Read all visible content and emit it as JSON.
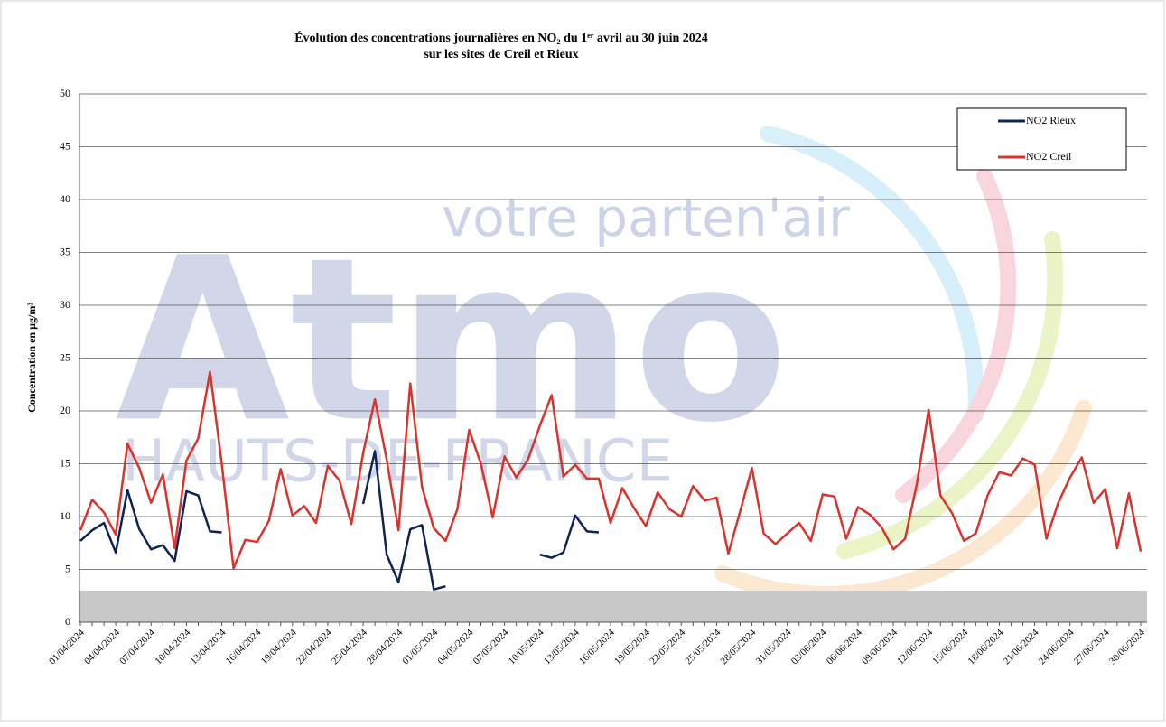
{
  "chart_data": {
    "type": "line",
    "title": [
      "Évolution des concentrations journalières en NO₂ du 1ᵉʳ avril au 30 juin 2024",
      "sur les sites de Creil et Rieux"
    ],
    "ylabel": "Concentration en µg/m³",
    "watermark": [
      "votre parten'air",
      "Atmo",
      "HAUTS-DE-FRANCE"
    ],
    "ylim": [
      0,
      50
    ],
    "yticks": [
      0,
      5,
      10,
      15,
      20,
      25,
      30,
      35,
      40,
      45,
      50
    ],
    "grid": true,
    "legend": "upper right",
    "categories": [
      "01/04/2024",
      null,
      null,
      "04/04/2024",
      null,
      null,
      "07/04/2024",
      null,
      null,
      "10/04/2024",
      null,
      null,
      "13/04/2024",
      null,
      null,
      "16/04/2024",
      null,
      null,
      "19/04/2024",
      null,
      null,
      "22/04/2024",
      null,
      null,
      "25/04/2024",
      null,
      null,
      "28/04/2024",
      null,
      null,
      "01/05/2024",
      null,
      null,
      "04/05/2024",
      null,
      null,
      "07/05/2024",
      null,
      null,
      "10/05/2024",
      null,
      null,
      "13/05/2024",
      null,
      null,
      "16/05/2024",
      null,
      null,
      "19/05/2024",
      null,
      null,
      "22/05/2024",
      null,
      null,
      "25/05/2024",
      null,
      null,
      "28/05/2024",
      null,
      null,
      "31/05/2024",
      null,
      null,
      "03/06/2024",
      null,
      null,
      "06/06/2024",
      null,
      null,
      "09/06/2024",
      null,
      null,
      "12/06/2024",
      null,
      null,
      "15/06/2024",
      null,
      null,
      "18/06/2024",
      null,
      null,
      "21/06/2024",
      null,
      null,
      "24/06/2024",
      null,
      null,
      "27/06/2024",
      null,
      null,
      "30/06/2024"
    ],
    "series": [
      {
        "name": "NO2 Rieux",
        "color": "#0f2456",
        "values": [
          7.7,
          8.7,
          9.4,
          6.6,
          12.5,
          8.8,
          6.9,
          7.3,
          5.8,
          12.4,
          12.0,
          8.6,
          8.5,
          null,
          null,
          null,
          null,
          null,
          null,
          null,
          null,
          null,
          null,
          null,
          11.2,
          16.2,
          6.4,
          3.8,
          8.8,
          9.2,
          3.1,
          3.4,
          null,
          null,
          null,
          null,
          null,
          null,
          null,
          6.4,
          6.1,
          6.6,
          10.1,
          8.6,
          8.5,
          null,
          null,
          null,
          null,
          null,
          null,
          null,
          null,
          null,
          null,
          null,
          null,
          null,
          null,
          null,
          null,
          null,
          null,
          null,
          null,
          null,
          null,
          null,
          null,
          null,
          null,
          null,
          null,
          null,
          null,
          null,
          null,
          null,
          null,
          null,
          null,
          null,
          null,
          null,
          null,
          null,
          null,
          null,
          null,
          null,
          null
        ]
      },
      {
        "name": "NO2  Creil",
        "color": "#d9342b",
        "values": [
          8.7,
          11.6,
          10.4,
          8.3,
          16.9,
          14.6,
          11.3,
          14.0,
          7.0,
          15.3,
          17.4,
          23.7,
          15.0,
          5.1,
          7.8,
          7.6,
          9.6,
          14.5,
          10.1,
          11.0,
          9.4,
          14.8,
          13.4,
          9.3,
          16.0,
          21.1,
          15.4,
          8.7,
          22.6,
          12.8,
          8.9,
          7.7,
          10.7,
          18.2,
          15.0,
          9.9,
          15.7,
          13.7,
          15.4,
          18.6,
          21.5,
          13.8,
          14.9,
          13.6,
          13.6,
          9.4,
          12.7,
          10.8,
          9.1,
          12.3,
          10.7,
          10.0,
          12.9,
          11.5,
          11.8,
          6.5,
          10.5,
          14.6,
          8.4,
          7.4,
          8.4,
          9.4,
          7.7,
          12.1,
          11.9,
          7.9,
          10.9,
          10.2,
          9.0,
          6.9,
          7.9,
          13.1,
          20.1,
          12.0,
          10.3,
          7.7,
          8.4,
          12.0,
          14.2,
          13.9,
          15.5,
          14.9,
          7.9,
          11.3,
          13.7,
          15.6,
          11.3,
          12.6,
          7.0,
          12.2,
          6.7
        ]
      }
    ]
  }
}
